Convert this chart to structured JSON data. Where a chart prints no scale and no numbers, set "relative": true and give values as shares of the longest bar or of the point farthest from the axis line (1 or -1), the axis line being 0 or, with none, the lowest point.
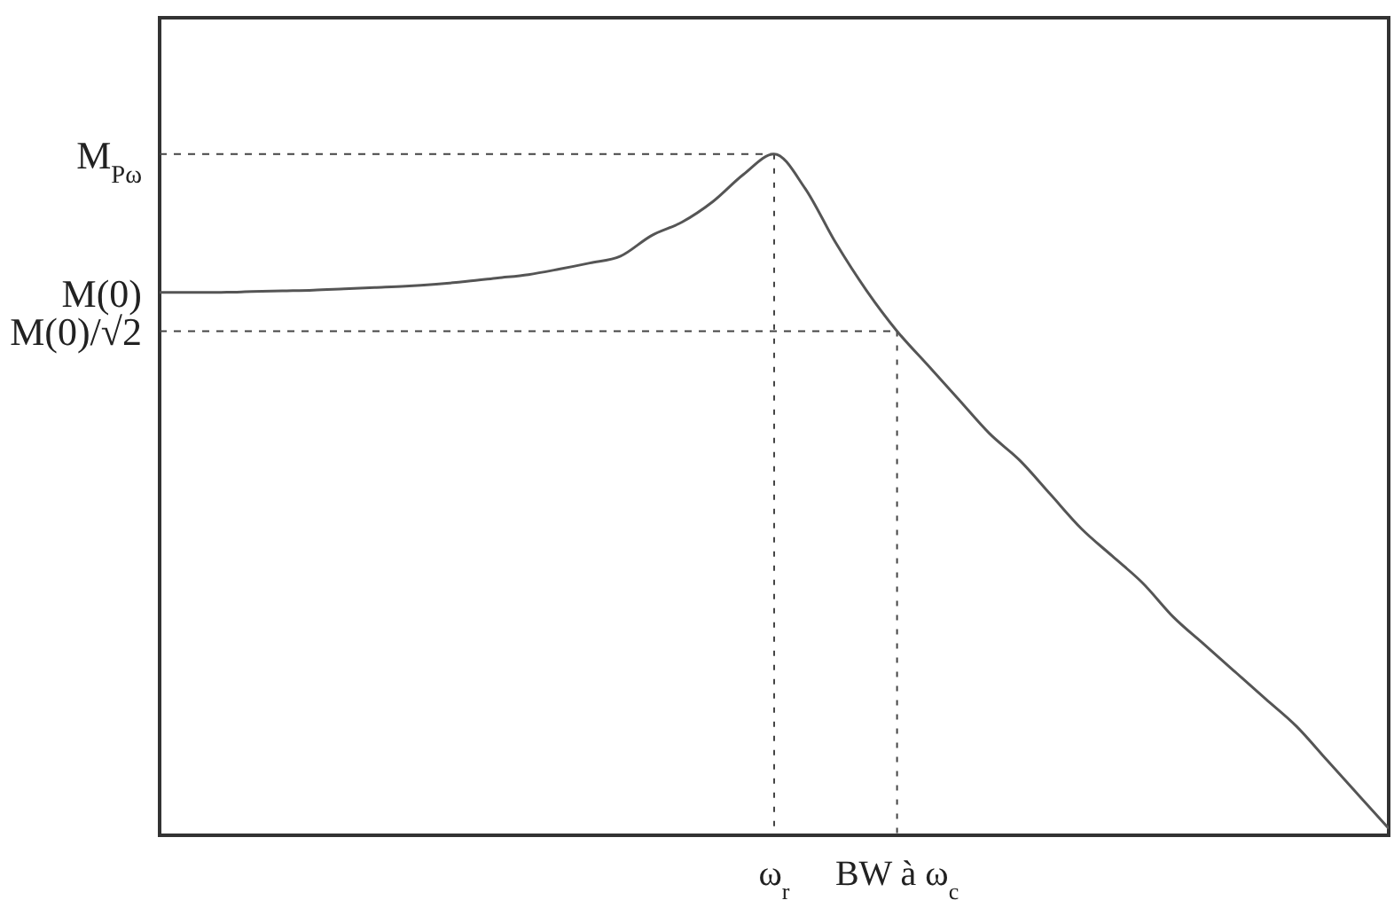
{
  "chart_data": {
    "type": "line",
    "relative": true,
    "line_style": "solid",
    "marker": "none",
    "categories": [
      null,
      null,
      null,
      null,
      null,
      null,
      null,
      null,
      null,
      null,
      null,
      null,
      null,
      null,
      null,
      null,
      null,
      null,
      null,
      null,
      "ω$_{r}$",
      null,
      null,
      null,
      "BW à ω$_{c}$",
      null,
      null,
      null,
      null,
      null,
      null,
      null,
      null,
      null,
      null,
      null,
      null,
      null,
      null,
      null,
      null
    ],
    "series": [
      {
        "color": "#555555",
        "values": [
          0.797,
          0.797,
          0.797,
          0.798,
          0.799,
          0.8,
          0.802,
          0.804,
          0.806,
          0.809,
          0.813,
          0.818,
          0.823,
          0.831,
          0.84,
          0.85,
          0.88,
          0.9,
          0.93,
          0.97,
          1,
          0.95,
          0.87,
          0.8,
          0.74,
          0.69,
          0.64,
          0.59,
          0.55,
          0.5,
          0.45,
          0.41,
          0.37,
          0.32,
          0.28,
          0.24,
          0.2,
          0.16,
          0.11,
          0.06,
          0.01
        ]
      }
    ],
    "annotations": [
      {
        "text": "M$_{Pω}$",
        "x": "ω$_{r}$",
        "y": 1
      },
      "M(0)",
      {
        "text": "M(0)/√2",
        "x": "BW à ω$_{c}$",
        "y": 0.74
      }
    ]
  }
}
